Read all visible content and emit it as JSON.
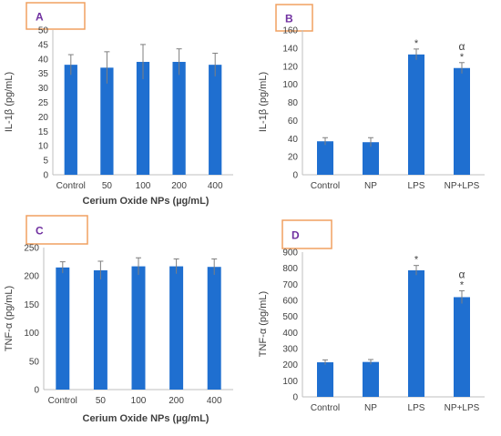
{
  "chart_data": [
    {
      "panel_label": "A",
      "type": "bar",
      "categories": [
        "Control",
        "50",
        "100",
        "200",
        "400"
      ],
      "values": [
        38,
        37,
        39,
        39,
        38
      ],
      "errors": [
        3.5,
        5.5,
        6,
        4.5,
        4
      ],
      "xlabel": "Cerium Oxide NPs (µg/mL)",
      "ylabel": "IL-1β (pg/mL)",
      "ylim": [
        0,
        50
      ],
      "yticks": [
        0,
        5,
        10,
        15,
        20,
        25,
        30,
        35,
        40,
        45,
        50
      ],
      "annotations": [
        "",
        "",
        "",
        "",
        ""
      ],
      "color": "#1f6fd0"
    },
    {
      "panel_label": "B",
      "type": "bar",
      "categories": [
        "Control",
        "NP",
        "LPS",
        "NP+LPS"
      ],
      "values": [
        37,
        36,
        133,
        118
      ],
      "errors": [
        4,
        5,
        6,
        6
      ],
      "xlabel": "",
      "ylabel": "IL-1β (pg/mL)",
      "ylim": [
        0,
        160
      ],
      "yticks": [
        0,
        20,
        40,
        60,
        80,
        100,
        120,
        140,
        160
      ],
      "annotations": [
        "",
        "",
        "*",
        "α\n*"
      ],
      "color": "#1f6fd0"
    },
    {
      "panel_label": "C",
      "type": "bar",
      "categories": [
        "Control",
        "50",
        "100",
        "200",
        "400"
      ],
      "values": [
        215,
        210,
        217,
        217,
        216
      ],
      "errors": [
        10,
        16,
        15,
        13,
        14
      ],
      "xlabel": "Cerium Oxide NPs (µg/mL)",
      "ylabel": "TNF-α (pg/mL)",
      "ylim": [
        0,
        250
      ],
      "yticks": [
        0,
        50,
        100,
        150,
        200,
        250
      ],
      "annotations": [
        "",
        "",
        "",
        "",
        ""
      ],
      "color": "#1f6fd0"
    },
    {
      "panel_label": "D",
      "type": "bar",
      "categories": [
        "Control",
        "NP",
        "LPS",
        "NP+LPS"
      ],
      "values": [
        215,
        217,
        787,
        620
      ],
      "errors": [
        15,
        15,
        30,
        40
      ],
      "xlabel": "",
      "ylabel": "TNF-α (pg/mL)",
      "ylim": [
        0,
        900
      ],
      "yticks": [
        0,
        100,
        200,
        300,
        400,
        500,
        600,
        700,
        800,
        900
      ],
      "annotations": [
        "",
        "",
        "*",
        "α\n*"
      ],
      "color": "#1f6fd0"
    }
  ]
}
